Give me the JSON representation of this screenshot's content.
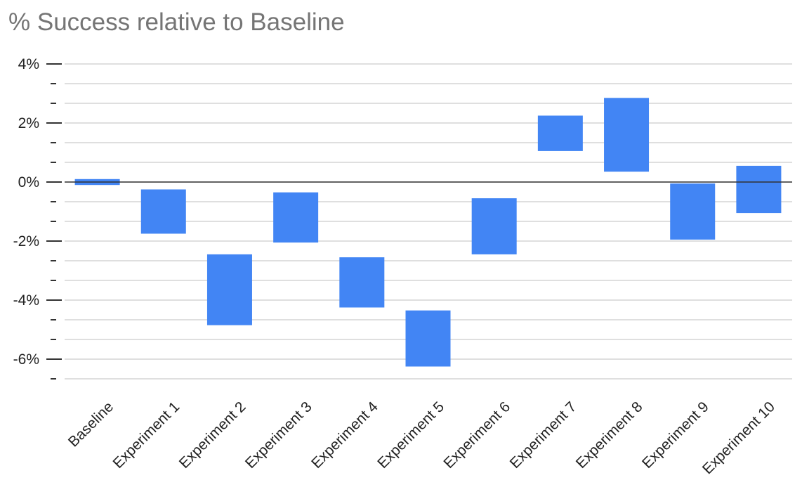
{
  "chart_data": {
    "type": "bar",
    "subtype": "floating-range",
    "title": "% Success relative to Baseline",
    "xlabel": "",
    "ylabel": "",
    "categories": [
      "Baseline",
      "Experiment 1",
      "Experiment 2",
      "Experiment 3",
      "Experiment 4",
      "Experiment 5",
      "Experiment 6",
      "Experiment 7",
      "Experiment 8",
      "Experiment 9",
      "Experiment 10"
    ],
    "series": [
      {
        "low": [
          -0.1,
          -1.75,
          -4.85,
          -2.05,
          -4.25,
          -6.25,
          -2.45,
          1.05,
          0.35,
          -1.95,
          -1.05
        ],
        "high": [
          0.1,
          -0.25,
          -2.45,
          -0.35,
          -2.55,
          -4.35,
          -0.55,
          2.25,
          2.85,
          -0.05,
          0.55
        ],
        "color": "#4285f4"
      }
    ],
    "ylim": [
      -7,
      4
    ],
    "yticks": [
      4,
      2,
      0,
      -2,
      -4,
      -6
    ],
    "ytick_labels": [
      "4%",
      "2%",
      "0%",
      "-2%",
      "-4%",
      "-6%"
    ],
    "minor_tick_step": 0.667,
    "grid": true,
    "legend": "none",
    "zero_line_color": "#333333",
    "grid_color": "#cccccc"
  }
}
